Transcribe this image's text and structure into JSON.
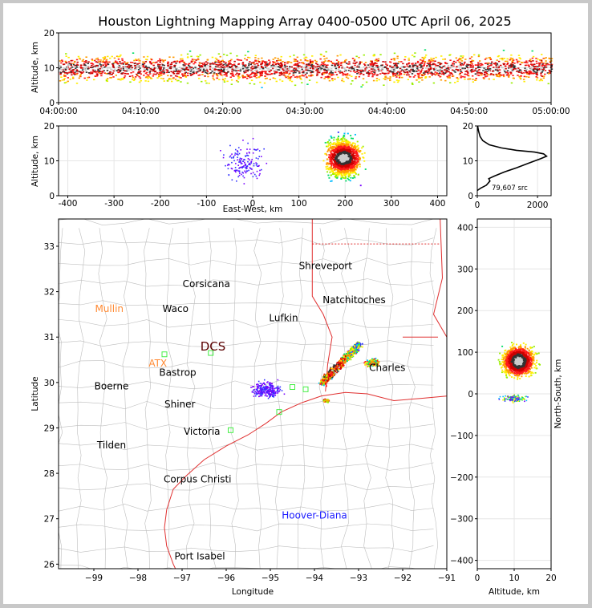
{
  "title": "Houston Lightning Mapping Array 0400-0500 UTC April 06, 2025",
  "colors": {
    "background": "#ffffff",
    "page_border": "#c8c8c8",
    "county_lines": "#b4b4b4",
    "coast_and_states": "#e03030",
    "radar_marker": "#44ee44",
    "density_scale": [
      "#7700ff",
      "#3333ff",
      "#00bbff",
      "#00dd66",
      "#99ee00",
      "#ffee00",
      "#ff9900",
      "#ff1a1a",
      "#cc0000",
      "#333333",
      "#cccccc"
    ]
  },
  "chart_data": [
    {
      "type": "scatter",
      "name": "altitude-time",
      "xlabel": "",
      "ylabel": "Altitude, km",
      "xticks": [
        "04:00:00",
        "04:10:00",
        "04:20:00",
        "04:30:00",
        "04:40:00",
        "04:50:00",
        "05:00:00"
      ],
      "xlim_minutes": [
        0,
        60
      ],
      "ylim": [
        0,
        20
      ],
      "yticks": [
        0,
        10,
        20
      ],
      "band_center_km": 10,
      "band_halfwidth_km": 5
    },
    {
      "type": "scatter",
      "name": "east-west-altitude",
      "xlabel": "East-West, km",
      "ylabel": "Altitude, km",
      "xlim": [
        -420,
        420
      ],
      "xticks": [
        -400,
        -300,
        -200,
        -100,
        0,
        100,
        200,
        300,
        400
      ],
      "ylim": [
        0,
        20
      ],
      "yticks": [
        0,
        10,
        20
      ],
      "core_x_km": 195,
      "core_alt_km": 11
    },
    {
      "type": "line",
      "name": "altitude-histogram",
      "xlim": [
        0,
        2450
      ],
      "xticks": [
        0,
        2000
      ],
      "ylim": [
        0,
        20
      ],
      "yticks": [
        0,
        10,
        20
      ],
      "annotation": "79,607 src",
      "points": [
        [
          0,
          1.5
        ],
        [
          120,
          2.2
        ],
        [
          300,
          3
        ],
        [
          420,
          4.2
        ],
        [
          380,
          4.9
        ],
        [
          560,
          5.6
        ],
        [
          900,
          6.8
        ],
        [
          1300,
          8
        ],
        [
          1700,
          9.3
        ],
        [
          2100,
          10.6
        ],
        [
          2300,
          11.3
        ],
        [
          2200,
          12
        ],
        [
          1900,
          12.5
        ],
        [
          1300,
          13
        ],
        [
          800,
          13.7
        ],
        [
          400,
          14.6
        ],
        [
          180,
          15.8
        ],
        [
          90,
          17
        ],
        [
          40,
          18.6
        ],
        [
          10,
          20
        ]
      ]
    },
    {
      "type": "scatter",
      "name": "plan-view-map",
      "xlabel": "Longitude",
      "ylabel": "Latitude",
      "xlim": [
        -99.8,
        -91
      ],
      "xticks": [
        -99,
        -98,
        -97,
        -96,
        -95,
        -94,
        -93,
        -92,
        -91
      ],
      "ylim": [
        25.9,
        33.6
      ],
      "yticks": [
        26,
        27,
        28,
        29,
        30,
        31,
        32,
        33
      ],
      "cities": [
        {
          "name": "Shreveport",
          "lon": -93.75,
          "lat": 32.5,
          "style": "city"
        },
        {
          "name": "Corsicana",
          "lon": -96.45,
          "lat": 32.1,
          "style": "city"
        },
        {
          "name": "Natchitoches",
          "lon": -93.1,
          "lat": 31.75,
          "style": "city"
        },
        {
          "name": "Mullin",
          "lon": -98.65,
          "lat": 31.55,
          "style": "city-radar"
        },
        {
          "name": "Waco",
          "lon": -97.15,
          "lat": 31.55,
          "style": "city"
        },
        {
          "name": "Lufkin",
          "lon": -94.7,
          "lat": 31.35,
          "style": "city"
        },
        {
          "name": "DCS",
          "lon": -96.3,
          "lat": 30.7,
          "style": "city-big"
        },
        {
          "name": "ATX",
          "lon": -97.55,
          "lat": 30.35,
          "style": "city-radar"
        },
        {
          "name": "Charles",
          "lon": -92.35,
          "lat": 30.25,
          "style": "city"
        },
        {
          "name": "Bastrop",
          "lon": -97.1,
          "lat": 30.15,
          "style": "city"
        },
        {
          "name": "Boerne",
          "lon": -98.6,
          "lat": 29.85,
          "style": "city"
        },
        {
          "name": "Shiner",
          "lon": -97.05,
          "lat": 29.45,
          "style": "city"
        },
        {
          "name": "Victoria",
          "lon": -96.55,
          "lat": 28.85,
          "style": "city"
        },
        {
          "name": "Tilden",
          "lon": -98.6,
          "lat": 28.55,
          "style": "city"
        },
        {
          "name": "Corpus Christi",
          "lon": -96.65,
          "lat": 27.8,
          "style": "city"
        },
        {
          "name": "Hoover-Diana",
          "lon": -94.0,
          "lat": 27.0,
          "style": "city-blue"
        },
        {
          "name": "Port Isabel",
          "lon": -96.6,
          "lat": 26.1,
          "style": "city"
        }
      ],
      "radar_sites": [
        [
          -97.4,
          30.62
        ],
        [
          -96.35,
          30.65
        ],
        [
          -95.9,
          28.95
        ],
        [
          -94.8,
          29.35
        ],
        [
          -94.5,
          29.9
        ],
        [
          -94.2,
          29.85
        ]
      ]
    },
    {
      "type": "scatter",
      "name": "north-south-altitude",
      "xlabel": "Altitude, km",
      "ylabel": "North-South, km",
      "xlim": [
        0,
        20
      ],
      "xticks": [
        0,
        10,
        20
      ],
      "ylim": [
        -420,
        420
      ],
      "yticks": [
        -400,
        -300,
        -200,
        -100,
        0,
        100,
        200,
        300,
        400
      ],
      "core_alt_km": 11,
      "core_y_km": 80
    }
  ]
}
